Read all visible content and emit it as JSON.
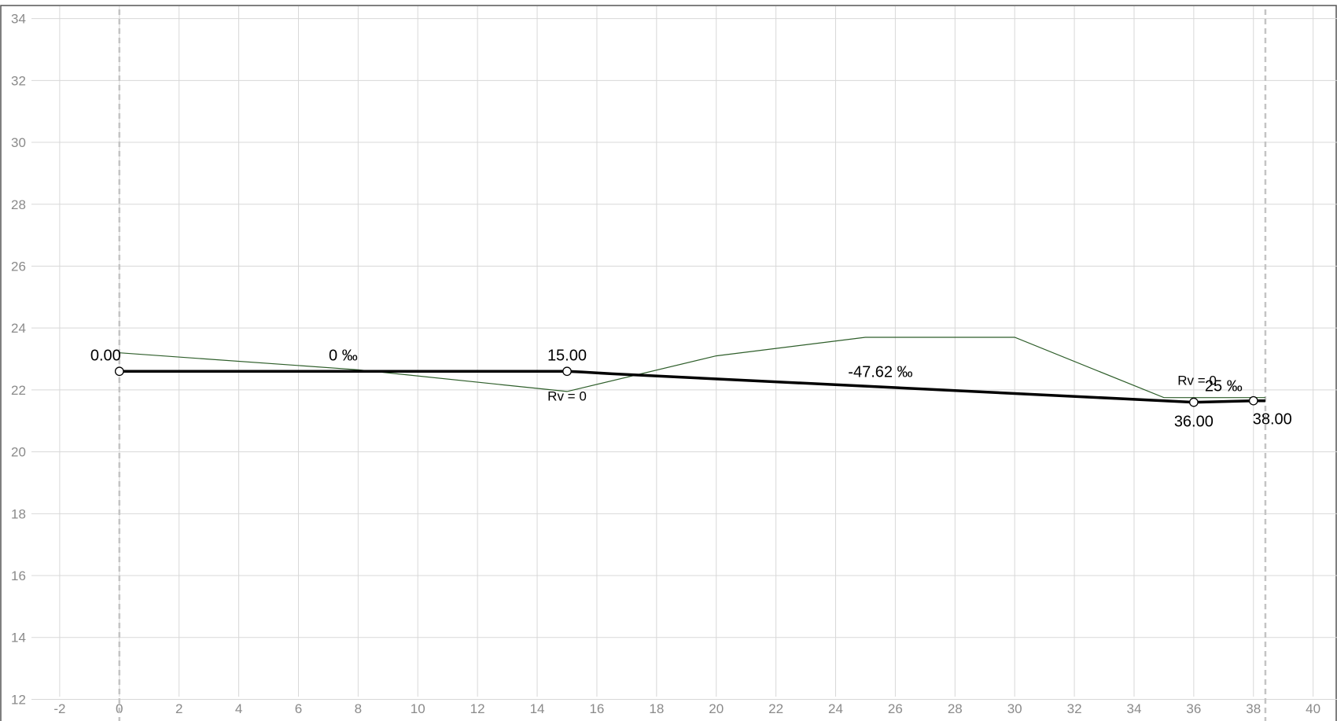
{
  "chart_data": {
    "type": "line",
    "title": "",
    "xlabel": "",
    "ylabel": "",
    "xlim": [
      -4,
      40.8
    ],
    "ylim": [
      11.3,
      34.6
    ],
    "grid": true,
    "x_ticks": [
      "-2",
      "0",
      "2",
      "4",
      "6",
      "8",
      "10",
      "12",
      "14",
      "16",
      "18",
      "20",
      "22",
      "24",
      "26",
      "28",
      "30",
      "32",
      "34",
      "36",
      "38",
      "40"
    ],
    "y_ticks": [
      "12",
      "14",
      "16",
      "18",
      "20",
      "22",
      "24",
      "26",
      "28",
      "30",
      "32",
      "34"
    ],
    "boundaries": [
      0,
      38.4
    ],
    "series": [
      {
        "role": "terrain",
        "color": "#2e5e2a",
        "points": [
          [
            0,
            23.2
          ],
          [
            8,
            22.65
          ],
          [
            15,
            21.95
          ],
          [
            20,
            23.1
          ],
          [
            25,
            23.7
          ],
          [
            30,
            23.7
          ],
          [
            35,
            21.75
          ],
          [
            38.4,
            21.75
          ]
        ]
      },
      {
        "role": "design-grade",
        "color": "#000000",
        "points": [
          [
            0,
            22.6
          ],
          [
            15,
            22.6
          ],
          [
            15.5,
            22.58
          ],
          [
            16.5,
            22.52
          ],
          [
            36,
            21.6
          ],
          [
            38,
            21.65
          ],
          [
            38.4,
            21.65
          ]
        ]
      }
    ],
    "vertices": [
      {
        "x": 0,
        "y": 22.6,
        "label": "0.00"
      },
      {
        "x": 15,
        "y": 22.6,
        "label": "15.00"
      },
      {
        "x": 36,
        "y": 21.6,
        "label": "36.00"
      },
      {
        "x": 38,
        "y": 21.65,
        "label": "38.00"
      }
    ],
    "annotations": [
      {
        "text": "0.00",
        "x": 0,
        "y": 22.6,
        "size": 20,
        "anchor": "end",
        "dx": 2,
        "dy": -14
      },
      {
        "text": "0 ‰",
        "x": 7.5,
        "y": 22.6,
        "size": 20,
        "anchor": "middle",
        "dx": 0,
        "dy": -14
      },
      {
        "text": "15.00",
        "x": 15,
        "y": 22.6,
        "size": 20,
        "anchor": "middle",
        "dx": 0,
        "dy": -14
      },
      {
        "text": "Rv = 0",
        "x": 15,
        "y": 22.6,
        "size": 17,
        "anchor": "middle",
        "dx": 0,
        "dy": 37
      },
      {
        "text": "-47.62 ‰",
        "x": 25.5,
        "y": 22.6,
        "size": 20,
        "anchor": "middle",
        "dx": 0,
        "dy": 7
      },
      {
        "text": "Rv = 0",
        "x": 36,
        "y": 21.6,
        "size": 17,
        "anchor": "end",
        "dx": 29,
        "dy": -22
      },
      {
        "text": "25 ‰",
        "x": 37,
        "y": 21.6,
        "size": 20,
        "anchor": "middle",
        "dx": 0,
        "dy": -14
      },
      {
        "text": "36.00",
        "x": 36,
        "y": 21.6,
        "size": 20,
        "anchor": "middle",
        "dx": 0,
        "dy": 31
      },
      {
        "text": "38.00",
        "x": 38,
        "y": 21.65,
        "size": 20,
        "anchor": "start",
        "dx": -1,
        "dy": 30
      }
    ]
  }
}
